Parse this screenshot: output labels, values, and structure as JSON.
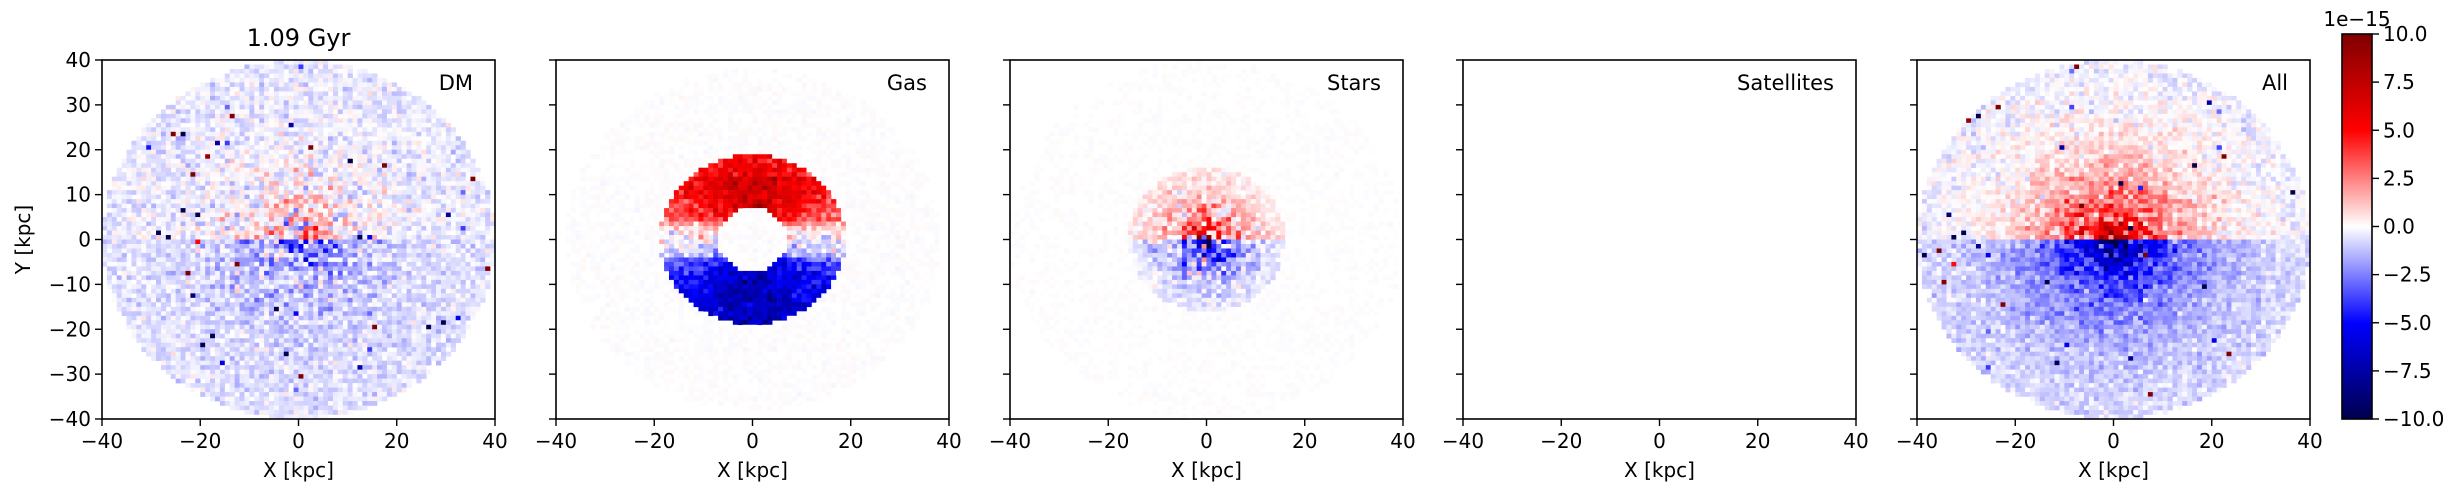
{
  "chart_data": {
    "type": "heatmap",
    "title": "1.09 Gyr",
    "xlabel": "X [kpc]",
    "ylabel": "Y [kpc]",
    "xlim": [
      -40,
      40
    ],
    "ylim": [
      -40,
      40
    ],
    "xticks": [
      -40,
      -20,
      0,
      20,
      40
    ],
    "yticks": [
      -40,
      -30,
      -20,
      -10,
      0,
      10,
      20,
      30,
      40
    ],
    "xtick_labels": [
      "−40",
      "−20",
      "0",
      "20",
      "40"
    ],
    "ytick_labels": [
      "−40",
      "−30",
      "−20",
      "−10",
      "0",
      "10",
      "20",
      "30",
      "40"
    ],
    "colormap": "seismic",
    "colors": {
      "low": "#00004d",
      "mid_low": "#0000ff",
      "mid": "#ffffff",
      "mid_high": "#ff0000",
      "high": "#800000"
    },
    "colorbar": {
      "range": [
        -10.0,
        10.0
      ],
      "ticks": [
        -10.0,
        -7.5,
        -5.0,
        -2.5,
        0.0,
        2.5,
        5.0,
        7.5,
        10.0
      ],
      "tick_labels": [
        "−10.0",
        "−7.5",
        "−5.0",
        "−2.5",
        "0.0",
        "2.5",
        "5.0",
        "7.5",
        "10.0"
      ],
      "scale_label": "1e−15"
    },
    "panels": [
      {
        "label": "DM"
      },
      {
        "label": "Gas"
      },
      {
        "label": "Stars"
      },
      {
        "label": "Satellites"
      },
      {
        "label": "All"
      }
    ]
  }
}
